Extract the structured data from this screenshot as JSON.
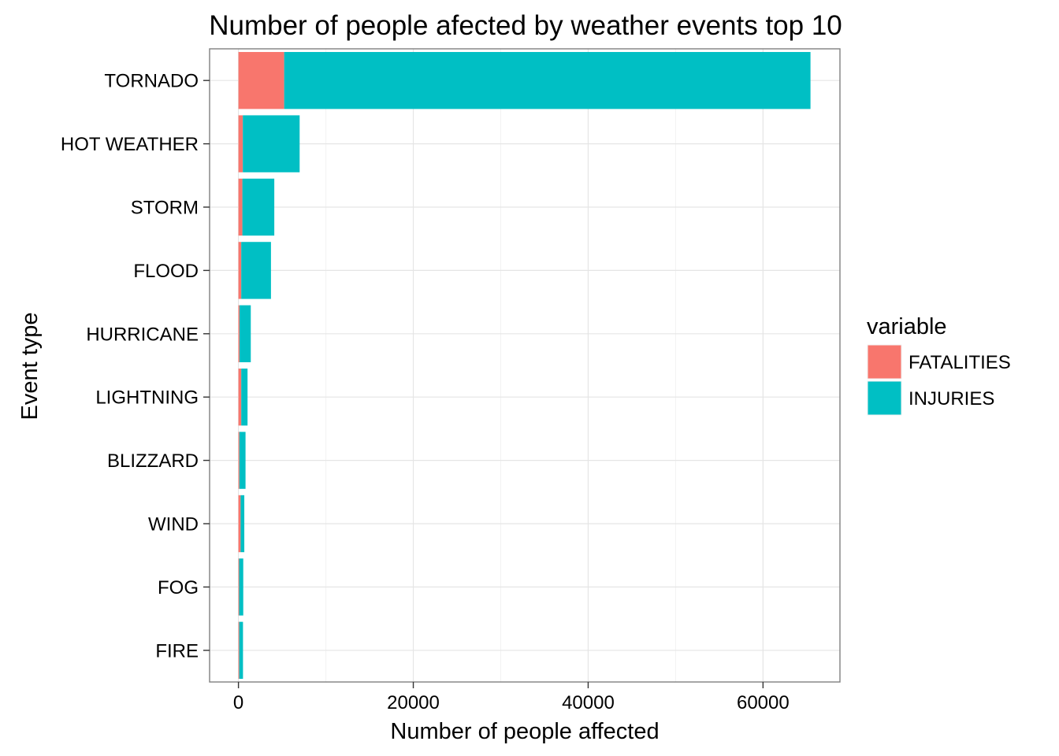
{
  "chart_data": {
    "type": "bar",
    "orientation": "horizontal",
    "stacked": true,
    "title": "Number of people afected by weather events top 10",
    "xlabel": "Number of people affected",
    "ylabel": "Event type",
    "categories": [
      "TORNADO",
      "HOT WEATHER",
      "STORM",
      "FLOOD",
      "HURRICANE",
      "LIGHTNING",
      "BLIZZARD",
      "WIND",
      "FOG",
      "FIRE"
    ],
    "series": [
      {
        "name": "FATALITIES",
        "color": "#F8766D",
        "values": [
          5230,
          500,
          450,
          320,
          130,
          320,
          110,
          250,
          80,
          90
        ]
      },
      {
        "name": "INJURIES",
        "color": "#00BFC4",
        "values": [
          60200,
          6500,
          3650,
          3400,
          1280,
          720,
          700,
          420,
          470,
          430
        ]
      }
    ],
    "xlim": [
      -3300,
      68800
    ],
    "x_ticks": [
      0,
      20000,
      40000,
      60000
    ],
    "x_tick_labels": [
      "0",
      "20000",
      "40000",
      "60000"
    ],
    "legend": {
      "title": "variable",
      "position": "right"
    },
    "grid": true
  }
}
